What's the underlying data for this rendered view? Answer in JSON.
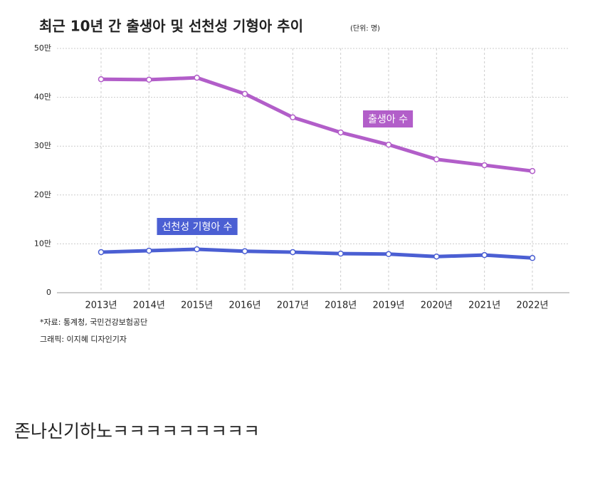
{
  "chart_data": {
    "type": "line",
    "title": "최근 10년 간 출생아 및 선천성 기형아 추이",
    "unit_note": "(단위: 명)",
    "categories": [
      "2013년",
      "2014년",
      "2015년",
      "2016년",
      "2017년",
      "2018년",
      "2019년",
      "2020년",
      "2021년",
      "2022년"
    ],
    "series": [
      {
        "name": "출생아 수",
        "color": "#b25ec9",
        "values": [
          43.7,
          43.6,
          44.0,
          40.7,
          35.9,
          32.8,
          30.3,
          27.3,
          26.1,
          24.9
        ]
      },
      {
        "name": "선천성 기형아 수",
        "color": "#4b5fd3",
        "values": [
          8.3,
          8.6,
          8.9,
          8.5,
          8.3,
          8.0,
          7.9,
          7.4,
          7.7,
          7.1
        ]
      }
    ],
    "ylim": [
      0,
      50
    ],
    "yticks": [
      0,
      {
        "value": 10,
        "label": "10만"
      },
      {
        "value": 20,
        "label": "20만"
      },
      {
        "value": 30,
        "label": "30만"
      },
      {
        "value": 40,
        "label": "40만"
      },
      {
        "value": 50,
        "label": "50만"
      }
    ],
    "grid": true,
    "source": "*자료: 통계청, 국민건강보험공단",
    "credit": "그래픽: 이지혜 디자인기자"
  },
  "caption": "존나신기하노ㅋㅋㅋㅋㅋㅋㅋㅋㅋ"
}
